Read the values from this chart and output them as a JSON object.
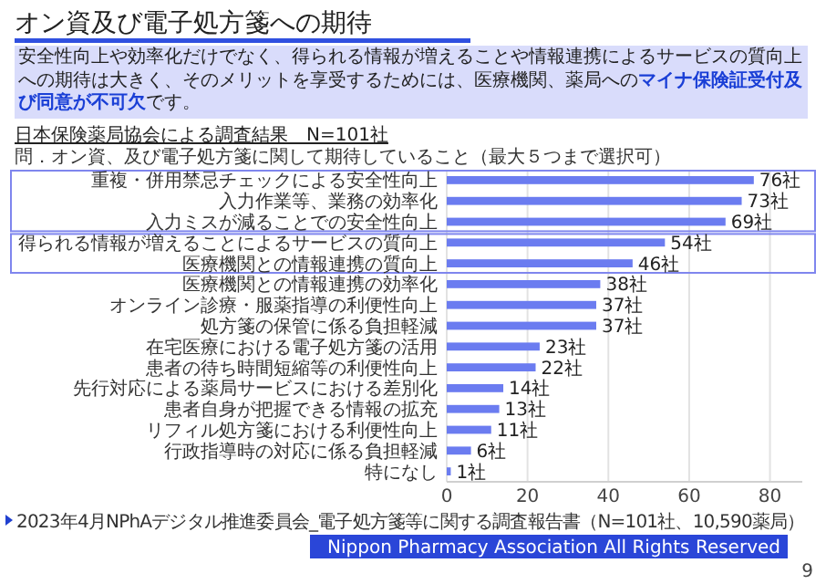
{
  "chart_data": {
    "type": "bar",
    "orientation": "horizontal",
    "title": "オン資及び電子処方箋への期待",
    "subtitle": "日本保険薬局協会による調査結果　N=101社",
    "annotations": [
      "安全性向上や効率化だけでなく、得られる情報が増えることや情報連携によるサービスの質向上への期待は大きく、そのメリットを享受するためには、医療機関、薬局への",
      "マイナ保険証受付及び同意が不可欠",
      "です。",
      "問．オン資、及び電子処方箋に関して期待していること（最大５つまで選択可）",
      "2023年4月NPhAデジタル推進委員会_電子処方箋等に関する調査報告書（N=101社、10,590薬局）",
      "Nippon Pharmacy Association All Rights Reserved",
      "9"
    ],
    "categories": [
      "重複・併用禁忌チェックによる安全性向上",
      "入力作業等、業務の効率化",
      "入力ミスが減ることでの安全性向上",
      "得られる情報が増えることによるサービスの質向上",
      "医療機関との情報連携の質向上",
      "医療機関との情報連携の効率化",
      "オンライン診療・服薬指導の利便性向上",
      "処方箋の保管に係る負担軽減",
      "在宅医療における電子処方箋の活用",
      "患者の待ち時間短縮等の利便性向上",
      "先行対応による薬局サービスにおける差別化",
      "患者自身が把握できる情報の拡充",
      "リフィル処方箋における利便性向上",
      "行政指導時の対応に係る負担軽減",
      "特になし"
    ],
    "values": [
      76,
      73,
      69,
      54,
      46,
      38,
      37,
      37,
      23,
      22,
      14,
      13,
      11,
      6,
      1
    ],
    "value_labels": [
      "76社",
      "73社",
      "69社",
      "54社",
      "46社",
      "38社",
      "37社",
      "37社",
      "23社",
      "22社",
      "14社",
      "13社",
      "11社",
      "6社",
      "1社"
    ],
    "color": "#6b7cf0",
    "xlim": [
      0,
      88
    ],
    "xticks": [
      0,
      20,
      40,
      60,
      80
    ],
    "grid": "x"
  }
}
